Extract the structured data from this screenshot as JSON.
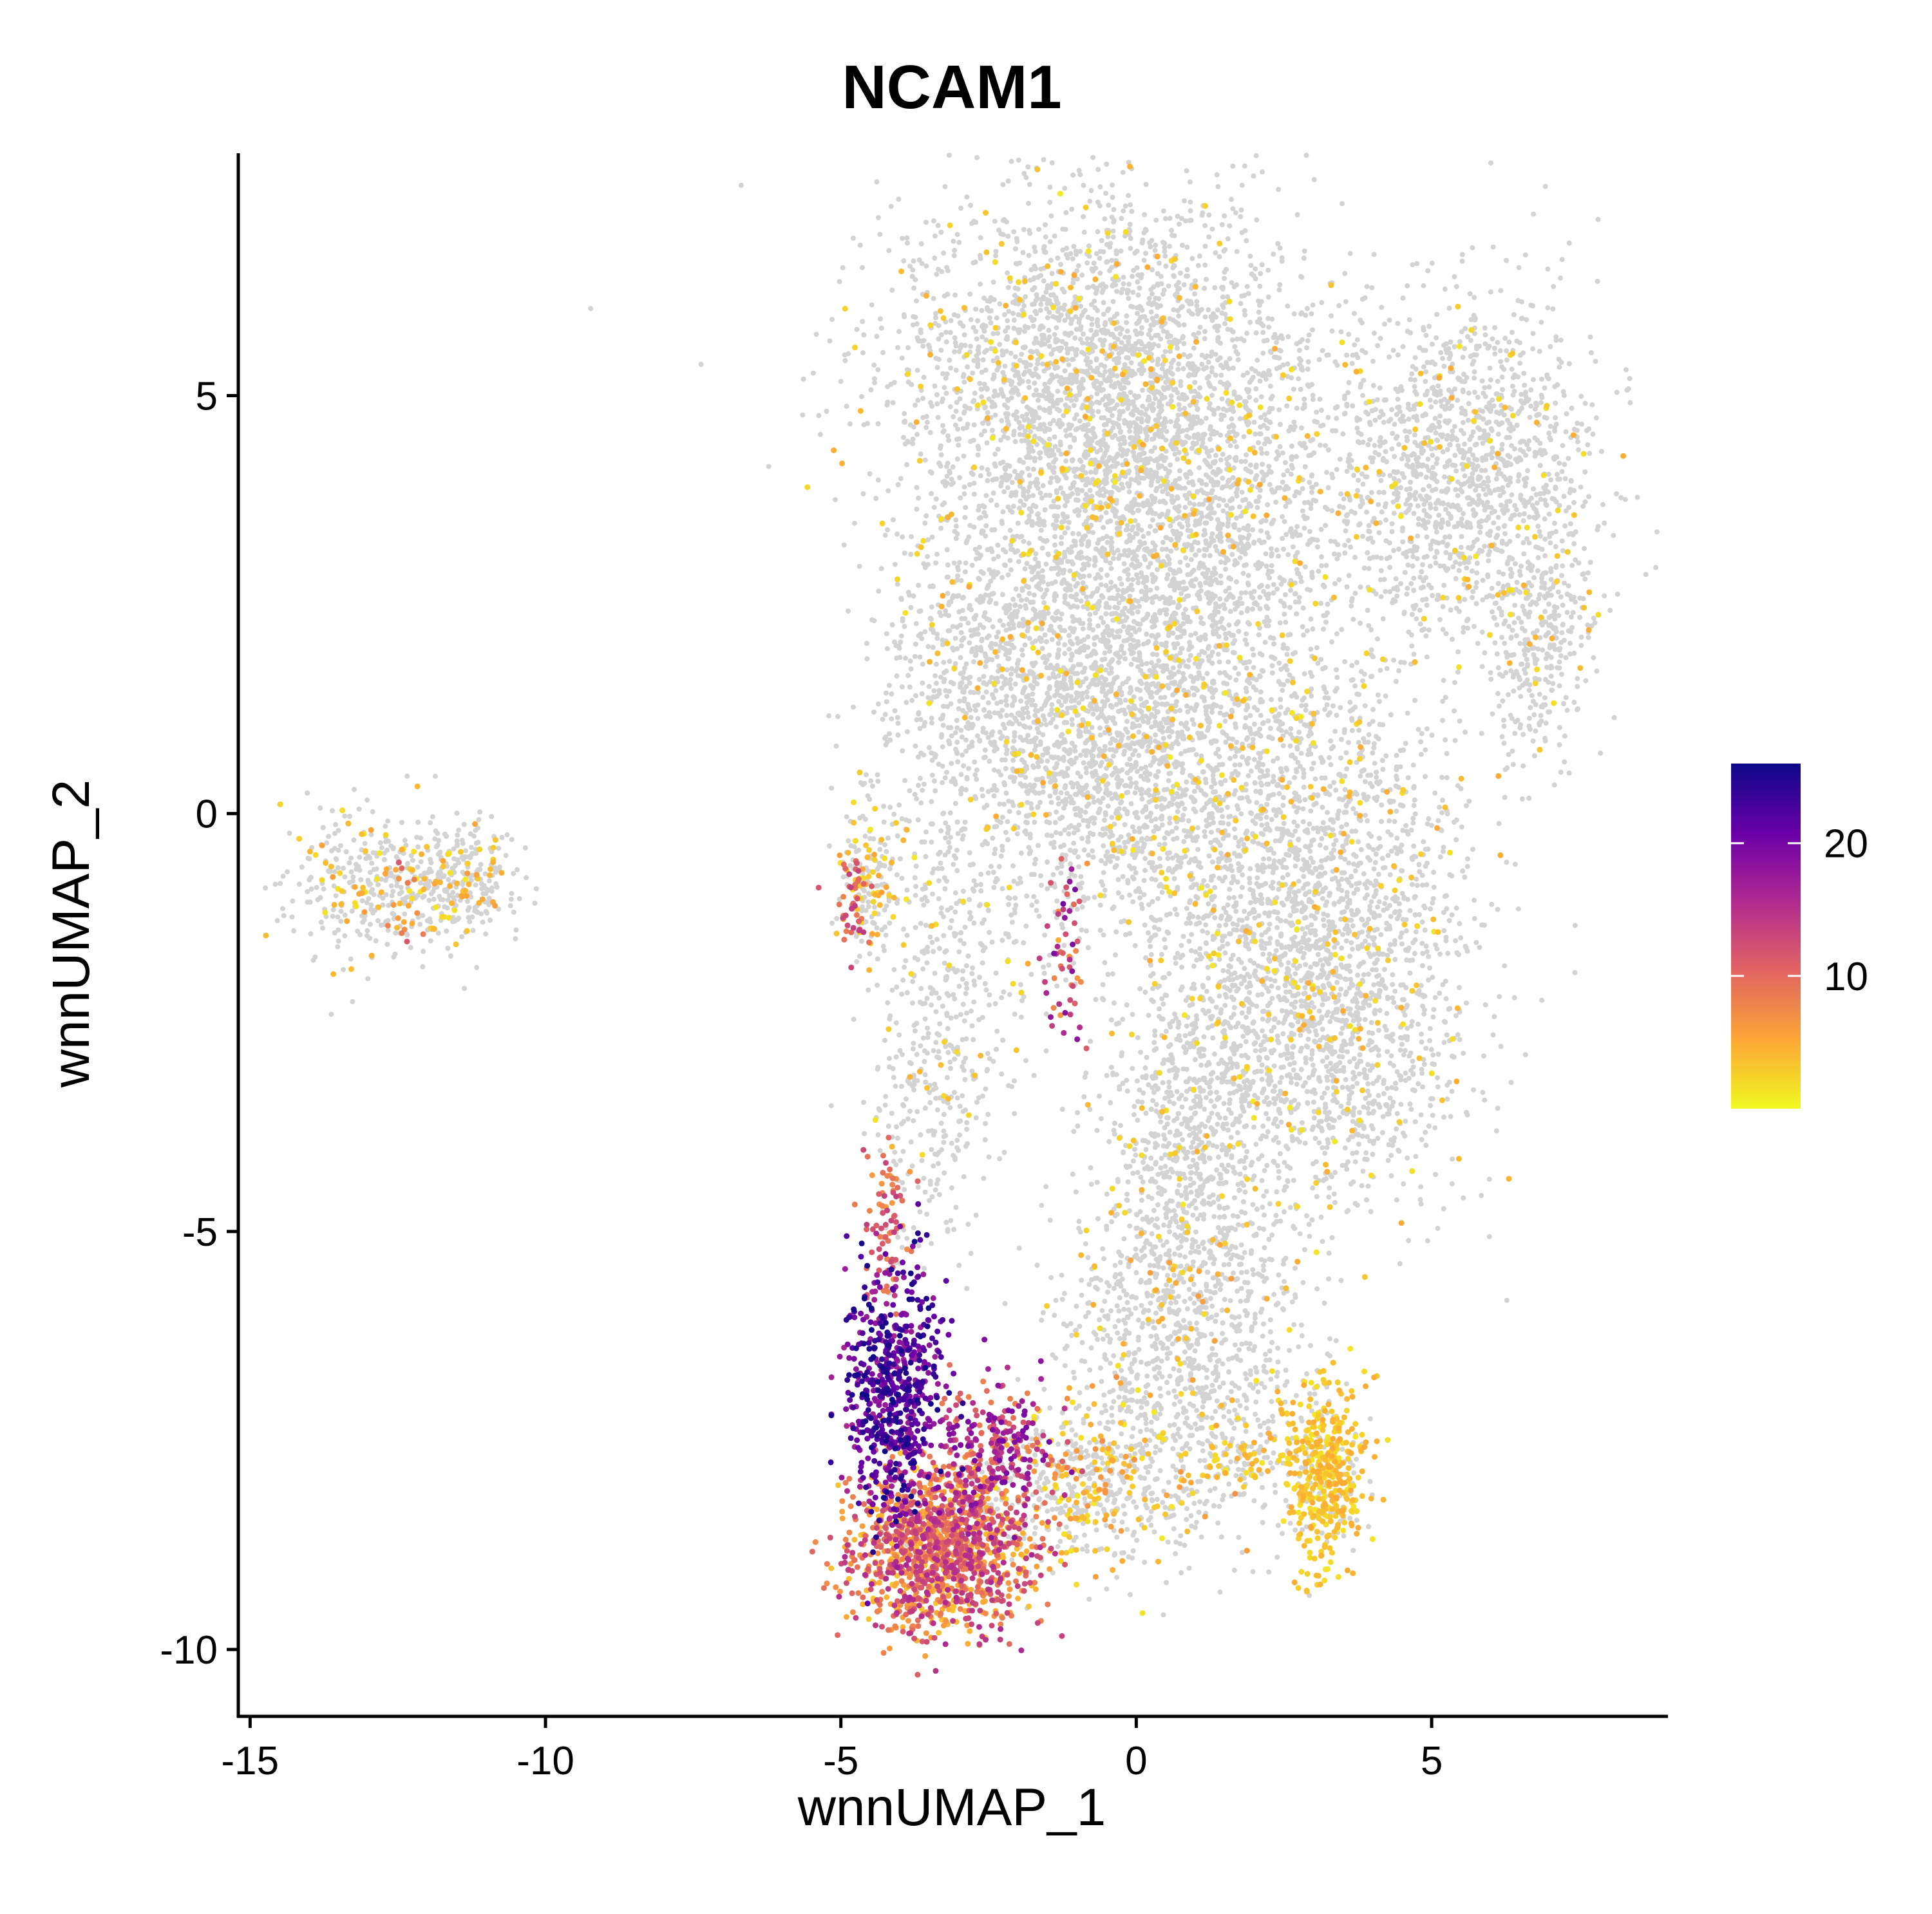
{
  "chart_data": {
    "type": "scatter",
    "title": "NCAM1",
    "xlabel": "wnnUMAP_1",
    "ylabel": "wnnUMAP_2",
    "xlim": [
      -15.2,
      9.0
    ],
    "ylim": [
      -10.8,
      7.9
    ],
    "xticks": [
      -15,
      -10,
      -5,
      0,
      5
    ],
    "yticks": [
      -10,
      -5,
      0,
      5
    ],
    "grid": false,
    "point_color_low": "#d3d3d3",
    "colorscale": {
      "name": "plasma",
      "stops": [
        "#f0f921",
        "#fca636",
        "#e16462",
        "#b12a90",
        "#6a00a8",
        "#0d0887"
      ],
      "range": [
        0,
        26
      ],
      "ticks": [
        10,
        20
      ],
      "legend_position": "right"
    },
    "clusters": [
      {
        "role": "background",
        "x": -12.8,
        "y": -0.9,
        "sx": 0.8,
        "sy": 0.45,
        "n": 380,
        "expr_frac": 0.18,
        "expr": [
          1,
          6
        ]
      },
      {
        "role": "background",
        "x": -11.4,
        "y": -0.8,
        "sx": 0.45,
        "sy": 0.35,
        "n": 220,
        "expr_frac": 0.15,
        "expr": [
          1,
          6
        ]
      },
      {
        "role": "background",
        "x": -0.6,
        "y": 5.2,
        "sx": 1.8,
        "sy": 1.1,
        "n": 2600,
        "expr_frac": 0.06,
        "expr": [
          1,
          5
        ]
      },
      {
        "role": "background",
        "x": 0.8,
        "y": 3.2,
        "sx": 1.6,
        "sy": 1.2,
        "n": 1800,
        "expr_frac": 0.05,
        "expr": [
          1,
          5
        ]
      },
      {
        "role": "background",
        "x": 5.6,
        "y": 4.2,
        "sx": 1.1,
        "sy": 1.0,
        "n": 1300,
        "expr_frac": 0.05,
        "expr": [
          1,
          5
        ]
      },
      {
        "role": "background",
        "x": 6.8,
        "y": 2.1,
        "sx": 0.45,
        "sy": 0.7,
        "n": 350,
        "expr_frac": 0.05,
        "expr": [
          1,
          5
        ]
      },
      {
        "role": "background",
        "x": -2.4,
        "y": 1.6,
        "sx": 1.0,
        "sy": 1.1,
        "n": 900,
        "expr_frac": 0.04,
        "expr": [
          1,
          5
        ]
      },
      {
        "role": "background",
        "x": -0.2,
        "y": 0.8,
        "sx": 1.1,
        "sy": 1.1,
        "n": 1400,
        "expr_frac": 0.05,
        "expr": [
          1,
          5
        ]
      },
      {
        "role": "background",
        "x": 2.8,
        "y": -0.6,
        "sx": 1.4,
        "sy": 1.3,
        "n": 1700,
        "expr_frac": 0.07,
        "expr": [
          1,
          5
        ]
      },
      {
        "role": "background",
        "x": 3.2,
        "y": -2.8,
        "sx": 1.2,
        "sy": 1.0,
        "n": 1100,
        "expr_frac": 0.07,
        "expr": [
          1,
          5
        ]
      },
      {
        "role": "background",
        "x": 0.9,
        "y": -3.8,
        "sx": 0.7,
        "sy": 1.0,
        "n": 600,
        "expr_frac": 0.05,
        "expr": [
          1,
          5
        ]
      },
      {
        "role": "background",
        "x": 0.8,
        "y": -6.3,
        "sx": 1.0,
        "sy": 1.2,
        "n": 1200,
        "expr_frac": 0.08,
        "expr": [
          1,
          6
        ]
      },
      {
        "role": "background",
        "x": -0.9,
        "y": -8.0,
        "sx": 0.9,
        "sy": 0.5,
        "n": 500,
        "expr_frac": 0.25,
        "expr": [
          1,
          7
        ]
      },
      {
        "role": "background",
        "x": -3.0,
        "y": -1.6,
        "sx": 0.7,
        "sy": 1.1,
        "n": 350,
        "expr_frac": 0.05,
        "expr": [
          1,
          5
        ]
      },
      {
        "role": "background",
        "x": -3.6,
        "y": -3.6,
        "sx": 0.5,
        "sy": 0.9,
        "n": 200,
        "expr_frac": 0.05,
        "expr": [
          1,
          5
        ]
      },
      {
        "role": "background",
        "x": -4.5,
        "y": -0.8,
        "sx": 0.25,
        "sy": 0.45,
        "n": 160,
        "expr_frac": 0.35,
        "expr": [
          1,
          6
        ]
      },
      {
        "role": "highlight",
        "x": 3.2,
        "y": -7.9,
        "sx": 0.35,
        "sy": 0.55,
        "n": 500,
        "expr_frac": 0.8,
        "expr": [
          1,
          5
        ]
      },
      {
        "role": "highlight",
        "x": 1.9,
        "y": -7.7,
        "sx": 0.4,
        "sy": 0.2,
        "n": 80,
        "expr_frac": 0.6,
        "expr": [
          1,
          5
        ]
      },
      {
        "role": "highlight",
        "x": -4.8,
        "y": -1.1,
        "sx": 0.12,
        "sy": 0.28,
        "n": 40,
        "expr_frac": 1.0,
        "expr": [
          8,
          14
        ]
      },
      {
        "role": "highlight",
        "x": -1.2,
        "y": -1.7,
        "sx": 0.15,
        "sy": 0.55,
        "n": 60,
        "expr_frac": 0.9,
        "expr": [
          6,
          20
        ]
      },
      {
        "role": "highlight",
        "x": -12.4,
        "y": -1.0,
        "sx": 0.15,
        "sy": 0.25,
        "n": 12,
        "expr_frac": 1.0,
        "expr": [
          6,
          12
        ]
      },
      {
        "role": "highlight",
        "x": -4.1,
        "y": -6.9,
        "sx": 0.4,
        "sy": 0.75,
        "n": 650,
        "expr_frac": 1.0,
        "expr": [
          16,
          26
        ]
      },
      {
        "role": "highlight",
        "x": -3.3,
        "y": -8.8,
        "sx": 0.75,
        "sy": 0.5,
        "n": 1300,
        "expr_frac": 1.0,
        "expr": [
          3,
          16
        ]
      },
      {
        "role": "highlight",
        "x": -2.4,
        "y": -7.6,
        "sx": 0.5,
        "sy": 0.4,
        "n": 250,
        "expr_frac": 1.0,
        "expr": [
          8,
          20
        ]
      },
      {
        "role": "highlight",
        "x": -4.2,
        "y": -4.9,
        "sx": 0.2,
        "sy": 0.5,
        "n": 80,
        "expr_frac": 1.0,
        "expr": [
          6,
          14
        ]
      }
    ]
  }
}
